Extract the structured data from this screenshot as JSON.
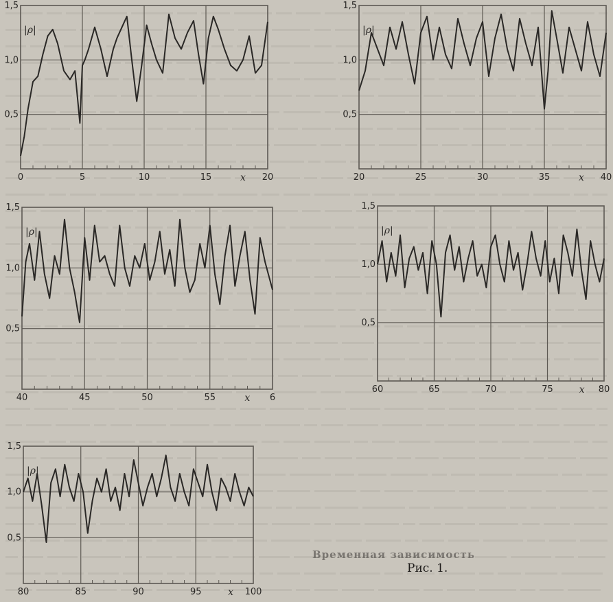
{
  "figure": {
    "caption": "Рис. 1.",
    "section_title": "Временная зависимость"
  },
  "colors": {
    "paper": "#c9c5bc",
    "ink": "#2a2826",
    "grid": "#5d5953",
    "bleed_text": "#a7a39b"
  },
  "chart_data": [
    {
      "type": "line",
      "ylabel": "|ρ|",
      "xlabel": "x",
      "xlim": [
        0,
        20
      ],
      "ylim": [
        0,
        1.5
      ],
      "xticks": [
        "0",
        "5",
        "10",
        "15",
        "20"
      ],
      "yticks": [
        "0,5",
        "1,0",
        "1,5"
      ],
      "grid": true,
      "series": [
        {
          "x": [
            0,
            0.3,
            0.6,
            1.0,
            1.4,
            1.8,
            2.2,
            2.6,
            3.0,
            3.5,
            4.0,
            4.4,
            4.8,
            5.0,
            5.2,
            5.5,
            6.0,
            6.5,
            7.0,
            7.5,
            7.8,
            8.2,
            8.6,
            9.0,
            9.4,
            9.8,
            10.2,
            10.6,
            11.0,
            11.5,
            12.0,
            12.5,
            13.0,
            13.5,
            14.0,
            14.4,
            14.8,
            15.2,
            15.6,
            16.0,
            16.5,
            17.0,
            17.5,
            18.0,
            18.5,
            19.0,
            19.5,
            20.0
          ],
          "y": [
            0.12,
            0.3,
            0.55,
            0.8,
            0.85,
            1.05,
            1.22,
            1.28,
            1.15,
            0.9,
            0.82,
            0.9,
            0.42,
            0.95,
            1.0,
            1.1,
            1.3,
            1.1,
            0.85,
            1.1,
            1.2,
            1.3,
            1.4,
            1.0,
            0.62,
            0.95,
            1.32,
            1.15,
            1.0,
            0.88,
            1.42,
            1.2,
            1.1,
            1.25,
            1.36,
            1.05,
            0.78,
            1.2,
            1.4,
            1.28,
            1.1,
            0.95,
            0.9,
            1.0,
            1.22,
            0.88,
            0.95,
            1.35
          ]
        }
      ]
    },
    {
      "type": "line",
      "ylabel": "|ρ|",
      "xlabel": "x",
      "xlim": [
        20,
        40
      ],
      "ylim": [
        0,
        1.5
      ],
      "xticks": [
        "20",
        "25",
        "30",
        "35",
        "40"
      ],
      "yticks": [
        "0,5",
        "1,0",
        "1,5"
      ],
      "grid": true,
      "series": [
        {
          "x": [
            20,
            20.5,
            21,
            21.5,
            22,
            22.5,
            23,
            23.5,
            24,
            24.5,
            25,
            25.5,
            26,
            26.5,
            27,
            27.5,
            28,
            28.5,
            29,
            29.5,
            30,
            30.5,
            31,
            31.5,
            32,
            32.5,
            33,
            33.5,
            34,
            34.5,
            35,
            35.3,
            35.6,
            36,
            36.5,
            37,
            37.5,
            38,
            38.5,
            39,
            39.5,
            40
          ],
          "y": [
            0.72,
            0.9,
            1.25,
            1.1,
            0.95,
            1.3,
            1.1,
            1.35,
            1.05,
            0.78,
            1.25,
            1.4,
            1.0,
            1.3,
            1.05,
            0.92,
            1.38,
            1.15,
            0.95,
            1.2,
            1.35,
            0.85,
            1.2,
            1.42,
            1.1,
            0.9,
            1.38,
            1.15,
            0.95,
            1.3,
            0.55,
            0.9,
            1.45,
            1.2,
            0.88,
            1.3,
            1.1,
            0.9,
            1.35,
            1.05,
            0.85,
            1.25
          ]
        }
      ]
    },
    {
      "type": "line",
      "ylabel": "|ρ|",
      "xlabel": "x",
      "xlim": [
        40,
        60
      ],
      "ylim": [
        0,
        1.5
      ],
      "xticks": [
        "40",
        "45",
        "50",
        "55",
        "6"
      ],
      "yticks": [
        "0,5",
        "1,0",
        "1,5"
      ],
      "grid": true,
      "series": [
        {
          "x": [
            40,
            40.3,
            40.6,
            41,
            41.4,
            41.8,
            42.2,
            42.6,
            43,
            43.4,
            43.8,
            44.2,
            44.6,
            45,
            45.4,
            45.8,
            46.2,
            46.6,
            47,
            47.4,
            47.8,
            48.2,
            48.6,
            49,
            49.4,
            49.8,
            50.2,
            50.6,
            51,
            51.4,
            51.8,
            52.2,
            52.6,
            53,
            53.4,
            53.8,
            54.2,
            54.6,
            55,
            55.4,
            55.8,
            56.2,
            56.6,
            57,
            57.4,
            57.8,
            58.2,
            58.6,
            59,
            59.4,
            60
          ],
          "y": [
            0.6,
            1.05,
            1.2,
            0.9,
            1.3,
            0.95,
            0.75,
            1.1,
            0.95,
            1.4,
            1.0,
            0.8,
            0.55,
            1.25,
            0.9,
            1.35,
            1.05,
            1.1,
            0.95,
            0.85,
            1.35,
            1.0,
            0.85,
            1.1,
            1.0,
            1.2,
            0.9,
            1.05,
            1.3,
            0.95,
            1.15,
            0.85,
            1.4,
            1.0,
            0.8,
            0.9,
            1.2,
            1.0,
            1.35,
            0.95,
            0.7,
            1.1,
            1.35,
            0.85,
            1.1,
            1.3,
            0.9,
            0.62,
            1.25,
            1.05,
            0.82
          ]
        }
      ]
    },
    {
      "type": "line",
      "ylabel": "|ρ|",
      "xlabel": "x",
      "xlim": [
        60,
        80
      ],
      "ylim": [
        0,
        1.5
      ],
      "xticks": [
        "60",
        "65",
        "70",
        "75",
        "80"
      ],
      "yticks": [
        "0,5",
        "1,0",
        "1,5"
      ],
      "grid": true,
      "series": [
        {
          "x": [
            60,
            60.4,
            60.8,
            61.2,
            61.6,
            62,
            62.4,
            62.8,
            63.2,
            63.6,
            64,
            64.4,
            64.8,
            65.2,
            65.6,
            66,
            66.4,
            66.8,
            67.2,
            67.6,
            68,
            68.4,
            68.8,
            69.2,
            69.6,
            70,
            70.4,
            70.8,
            71.2,
            71.6,
            72,
            72.4,
            72.8,
            73.2,
            73.6,
            74,
            74.4,
            74.8,
            75.2,
            75.6,
            76,
            76.4,
            76.8,
            77.2,
            77.6,
            78,
            78.4,
            78.8,
            79.2,
            79.6,
            80
          ],
          "y": [
            1.0,
            1.2,
            0.85,
            1.1,
            0.9,
            1.25,
            0.8,
            1.05,
            1.15,
            0.95,
            1.1,
            0.75,
            1.2,
            1.0,
            0.55,
            1.1,
            1.25,
            0.95,
            1.15,
            0.85,
            1.05,
            1.2,
            0.9,
            1.0,
            0.8,
            1.15,
            1.25,
            1.0,
            0.85,
            1.2,
            0.95,
            1.1,
            0.78,
            1.0,
            1.28,
            1.05,
            0.9,
            1.2,
            0.85,
            1.05,
            0.75,
            1.25,
            1.1,
            0.9,
            1.3,
            0.95,
            0.7,
            1.2,
            1.0,
            0.85,
            1.05
          ]
        }
      ]
    },
    {
      "type": "line",
      "ylabel": "|ρ|",
      "xlabel": "x",
      "xlim": [
        80,
        100
      ],
      "ylim": [
        0,
        1.5
      ],
      "xticks": [
        "80",
        "85",
        "90",
        "95",
        "100"
      ],
      "yticks": [
        "0,5",
        "1,0",
        "1,5"
      ],
      "grid": true,
      "series": [
        {
          "x": [
            80,
            80.4,
            80.8,
            81.2,
            81.6,
            82,
            82.4,
            82.8,
            83.2,
            83.6,
            84,
            84.4,
            84.8,
            85.2,
            85.6,
            86,
            86.4,
            86.8,
            87.2,
            87.6,
            88,
            88.4,
            88.8,
            89.2,
            89.6,
            90,
            90.4,
            90.8,
            91.2,
            91.6,
            92,
            92.4,
            92.8,
            93.2,
            93.6,
            94,
            94.4,
            94.8,
            95.2,
            95.6,
            96,
            96.4,
            96.8,
            97.2,
            97.6,
            98,
            98.4,
            98.8,
            99.2,
            99.6,
            100
          ],
          "y": [
            1.0,
            1.15,
            0.9,
            1.2,
            0.85,
            0.45,
            1.1,
            1.25,
            0.95,
            1.3,
            1.05,
            0.9,
            1.2,
            1.0,
            0.55,
            0.9,
            1.15,
            1.0,
            1.25,
            0.9,
            1.05,
            0.8,
            1.2,
            0.95,
            1.35,
            1.1,
            0.85,
            1.05,
            1.2,
            0.95,
            1.15,
            1.4,
            1.05,
            0.9,
            1.2,
            1.0,
            0.85,
            1.25,
            1.1,
            0.95,
            1.3,
            1.0,
            0.8,
            1.15,
            1.05,
            0.9,
            1.2,
            1.0,
            0.85,
            1.05,
            0.95
          ]
        }
      ]
    }
  ]
}
